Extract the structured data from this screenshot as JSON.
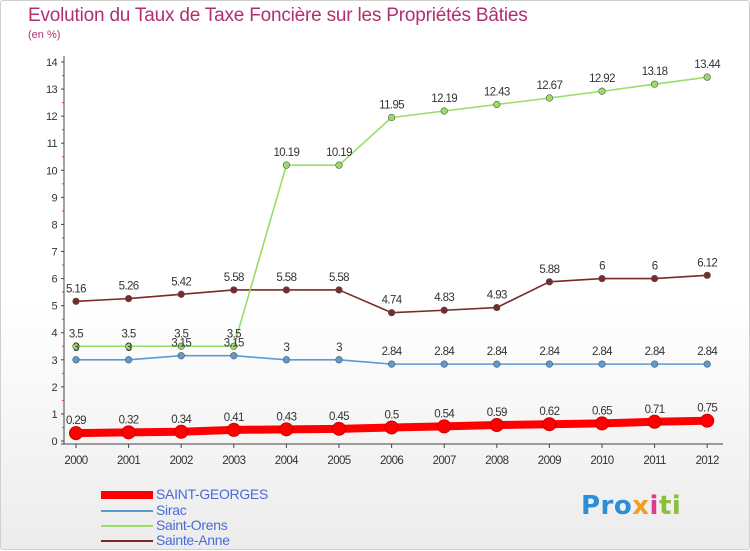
{
  "chart_data": {
    "type": "line",
    "title": "Evolution du Taux de Taxe Foncière sur les Propriétés Bâties",
    "subtitle": "(en %)",
    "xlabel": "",
    "ylabel": "(en %)",
    "ylim": [
      0,
      14
    ],
    "yticks": [
      "0",
      "1",
      "2",
      "3",
      "4",
      "5",
      "6",
      "7",
      "8",
      "9",
      "10",
      "11",
      "12",
      "13",
      "14"
    ],
    "categories": [
      "2000",
      "2001",
      "2002",
      "2003",
      "2004",
      "2005",
      "2006",
      "2007",
      "2008",
      "2009",
      "2010",
      "2011",
      "2012"
    ],
    "series": [
      {
        "name": "SAINT-GEORGES",
        "color": "#ff0000",
        "values": [
          0.29,
          0.32,
          0.34,
          0.41,
          0.43,
          0.45,
          0.5,
          0.54,
          0.59,
          0.62,
          0.65,
          0.71,
          0.75
        ],
        "labels": [
          "0.29",
          "0.32",
          "0.34",
          "0.41",
          "0.43",
          "0.45",
          "0.5",
          "0.54",
          "0.59",
          "0.62",
          "0.65",
          "0.71",
          "0.75"
        ]
      },
      {
        "name": "Sirac",
        "color": "#5b9bd5",
        "values": [
          3,
          3,
          3.15,
          3.15,
          3,
          3,
          2.84,
          2.84,
          2.84,
          2.84,
          2.84,
          2.84,
          2.84
        ],
        "labels": [
          "3",
          "3",
          "3.15",
          "3.15",
          "3",
          "3",
          "2.84",
          "2.84",
          "2.84",
          "2.84",
          "2.84",
          "2.84",
          "2.84"
        ]
      },
      {
        "name": "Saint-Orens",
        "color": "#99dd66",
        "values": [
          3.5,
          3.5,
          3.5,
          3.5,
          10.19,
          10.19,
          11.95,
          12.19,
          12.43,
          12.67,
          12.92,
          13.18,
          13.44
        ],
        "labels": [
          "3.5",
          "3.5",
          "3.5",
          "3.5",
          "10.19",
          "10.19",
          "11.95",
          "12.19",
          "12.43",
          "12.67",
          "12.92",
          "13.18",
          "13.44"
        ]
      },
      {
        "name": "Sainte-Anne",
        "color": "#7a2a2a",
        "values": [
          5.16,
          5.26,
          5.42,
          5.58,
          5.58,
          5.58,
          4.74,
          4.83,
          4.93,
          5.88,
          6,
          6,
          6.12
        ],
        "labels": [
          "5.16",
          "5.26",
          "5.42",
          "5.58",
          "5.58",
          "5.58",
          "4.74",
          "4.83",
          "4.93",
          "5.88",
          "6",
          "6",
          "6.12"
        ]
      }
    ],
    "legend_position": "bottom-left"
  },
  "logo": {
    "p1": "Pro",
    "p2": "x",
    "p3": "i",
    "p4": "ti"
  }
}
